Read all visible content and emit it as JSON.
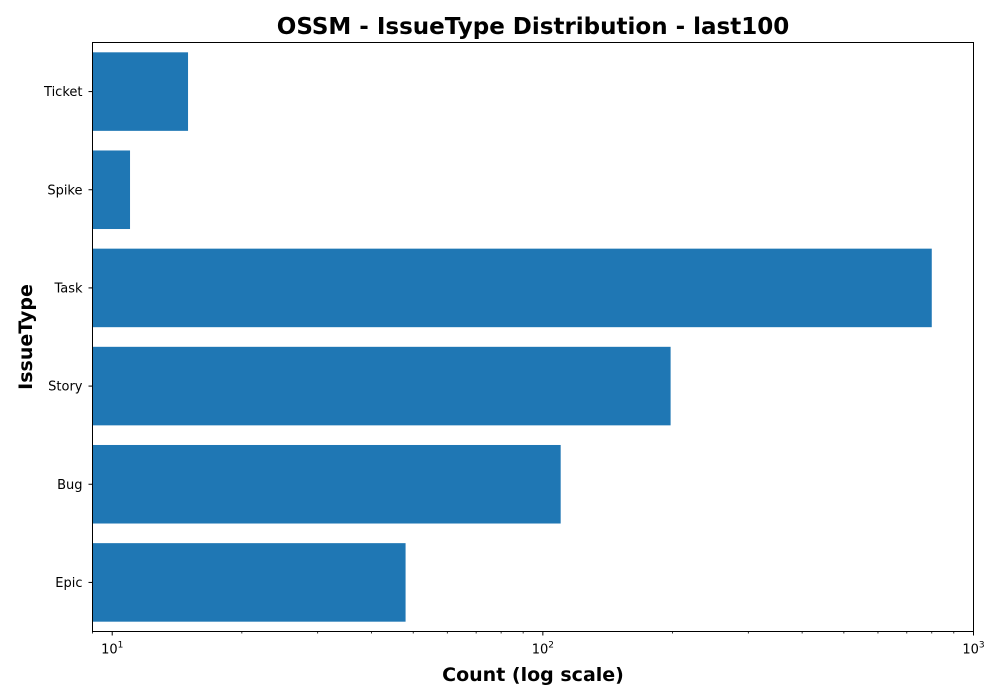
{
  "chart_data": {
    "type": "bar",
    "orientation": "horizontal",
    "title": "OSSM - IssueType Distribution - last100",
    "xlabel": "Count (log scale)",
    "ylabel": "IssueType",
    "x_scale": "log",
    "xlim": [
      9,
      1000
    ],
    "x_major_ticks": [
      {
        "value": 10,
        "base": "10",
        "exponent": "1"
      },
      {
        "value": 100,
        "base": "10",
        "exponent": "2"
      },
      {
        "value": 1000,
        "base": "10",
        "exponent": "3"
      }
    ],
    "categories": [
      "Epic",
      "Bug",
      "Story",
      "Task",
      "Spike",
      "Ticket"
    ],
    "values": [
      48,
      110,
      198,
      800,
      11,
      15
    ],
    "bar_color": "#1f77b4",
    "grid": false,
    "legend": "none"
  }
}
